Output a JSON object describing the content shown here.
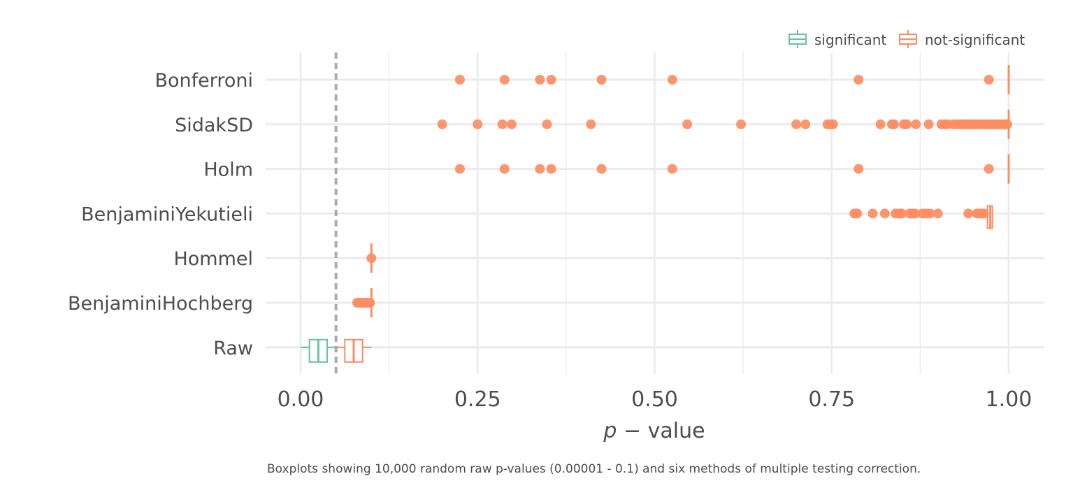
{
  "chart_data": {
    "type": "boxplot",
    "orientation": "horizontal",
    "title": "",
    "xlabel_italic": "p",
    "xlabel_rest": " − value",
    "ylabel": "",
    "caption": "Boxplots showing 10,000 random raw p-values (0.00001 - 0.1) and six methods of multiple testing correction.",
    "xlim": [
      -0.01,
      1.02
    ],
    "x_ticks": [
      0,
      0.25,
      0.5,
      0.75,
      1.0
    ],
    "x_tick_labels": [
      "0.00",
      "0.25",
      "0.50",
      "0.75",
      "1.00"
    ],
    "x_minor": [
      0.125,
      0.375,
      0.625,
      0.875
    ],
    "threshold_line": 0.05,
    "grid": true,
    "legend_position": "top-right",
    "colors": {
      "significant": "#66c2a5",
      "not_significant": "#fc8d62",
      "threshold": "#aaaaaa",
      "grid": "#ebebeb"
    },
    "legend": [
      {
        "key": "significant",
        "label": "significant"
      },
      {
        "key": "not_significant",
        "label": "not-significant"
      }
    ],
    "categories": [
      "Bonferroni",
      "SidakSD",
      "Holm",
      "BenjaminiYekutieli",
      "Hommel",
      "BenjaminiHochberg",
      "Raw"
    ],
    "boxes": [
      {
        "category": "Bonferroni",
        "group": "not_significant",
        "stats": {
          "whisker_low": 1.0,
          "q1": 1.0,
          "median": 1.0,
          "q3": 1.0,
          "whisker_high": 1.0
        },
        "outliers": [
          0.225,
          0.288,
          0.338,
          0.354,
          0.425,
          0.525,
          0.788,
          0.972
        ]
      },
      {
        "category": "SidakSD",
        "group": "not_significant",
        "stats": {
          "whisker_low": 1.0,
          "q1": 1.0,
          "median": 1.0,
          "q3": 1.0,
          "whisker_high": 1.0
        },
        "outliers": [
          0.2,
          0.25,
          0.285,
          0.298,
          0.348,
          0.41,
          0.546,
          0.622,
          0.7,
          0.713,
          0.744,
          0.748,
          0.752,
          0.819,
          0.835,
          0.838,
          0.852,
          0.856,
          0.869,
          0.887,
          0.905,
          0.91,
          0.913,
          0.921,
          0.925,
          0.93,
          0.933,
          0.937,
          0.94,
          0.943,
          0.946,
          0.95,
          0.953,
          0.957,
          0.961,
          0.965,
          0.968,
          0.972,
          0.975,
          0.978,
          0.981,
          0.984,
          0.987,
          0.99,
          0.993,
          0.996,
          0.998
        ]
      },
      {
        "category": "Holm",
        "group": "not_significant",
        "stats": {
          "whisker_low": 1.0,
          "q1": 1.0,
          "median": 1.0,
          "q3": 1.0,
          "whisker_high": 1.0
        },
        "outliers": [
          0.225,
          0.288,
          0.338,
          0.354,
          0.425,
          0.525,
          0.788,
          0.972
        ]
      },
      {
        "category": "BenjaminiYekutieli",
        "group": "not_significant",
        "stats": {
          "whisker_low": 0.97,
          "q1": 0.97,
          "median": 0.974,
          "q3": 0.977,
          "whisker_high": 0.977
        },
        "outliers": [
          0.782,
          0.786,
          0.808,
          0.825,
          0.84,
          0.845,
          0.849,
          0.86,
          0.864,
          0.868,
          0.878,
          0.883,
          0.889,
          0.9,
          0.943,
          0.955,
          0.958,
          0.962,
          0.965
        ]
      },
      {
        "category": "Hommel",
        "group": "not_significant",
        "stats": {
          "whisker_low": 0.1,
          "q1": 0.1,
          "median": 0.1,
          "q3": 0.1,
          "whisker_high": 0.1
        },
        "outliers": [
          0.1
        ]
      },
      {
        "category": "BenjaminiHochberg",
        "group": "not_significant",
        "stats": {
          "whisker_low": 0.1,
          "q1": 0.1,
          "median": 0.1,
          "q3": 0.1,
          "whisker_high": 0.1
        },
        "outliers": [
          0.08,
          0.082,
          0.084,
          0.086,
          0.088,
          0.09,
          0.092,
          0.094,
          0.096,
          0.098
        ]
      },
      {
        "category": "Raw",
        "group": "significant",
        "stats": {
          "whisker_low": 0.0,
          "q1": 0.0125,
          "median": 0.025,
          "q3": 0.0375,
          "whisker_high": 0.05
        },
        "outliers": []
      },
      {
        "category": "Raw",
        "group": "not_significant",
        "stats": {
          "whisker_low": 0.05,
          "q1": 0.0625,
          "median": 0.075,
          "q3": 0.0875,
          "whisker_high": 0.1
        },
        "outliers": []
      }
    ]
  }
}
